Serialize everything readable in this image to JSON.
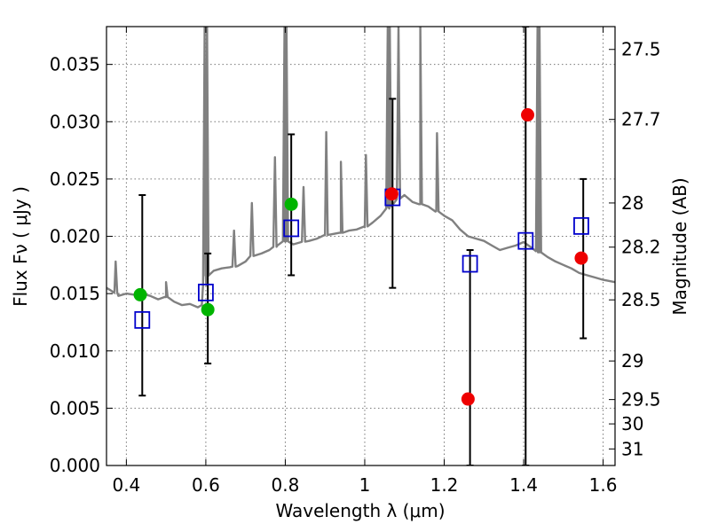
{
  "chart_data": {
    "type": "scatter",
    "xlabel": "Wavelength  λ (μm)",
    "ylabel": "Flux  Fν  ( μJy )",
    "y2label": "Magnitude (AB)",
    "xlim": [
      0.35,
      1.63
    ],
    "ylim": [
      0.0,
      0.0383
    ],
    "x_ticks": [
      0.4,
      0.6,
      0.8,
      1.0,
      1.2,
      1.4,
      1.6
    ],
    "x_tick_labels": [
      "0.4",
      "0.6",
      "0.8",
      "1",
      "1.2",
      "1.4",
      "1.6"
    ],
    "y_ticks": [
      0.0,
      0.005,
      0.01,
      0.015,
      0.02,
      0.025,
      0.03,
      0.035
    ],
    "y_tick_labels": [
      "0.000",
      "0.005",
      "0.010",
      "0.015",
      "0.020",
      "0.025",
      "0.030",
      "0.035"
    ],
    "y2_tick_labels": [
      "27.5",
      "27.7",
      "28",
      "28.2",
      "28.5",
      "29",
      "29.5",
      "30",
      "31"
    ],
    "grid": true,
    "colors": {
      "template": "#808080",
      "model_box": "#0000cc",
      "green_point": "#00b400",
      "red_point": "#ee0000",
      "errorbar": "#000000"
    },
    "template_spectrum": {
      "x": [
        0.35,
        0.36,
        0.37,
        0.38,
        0.4,
        0.42,
        0.44,
        0.46,
        0.48,
        0.5,
        0.52,
        0.54,
        0.56,
        0.58,
        0.59,
        0.6,
        0.62,
        0.64,
        0.66,
        0.68,
        0.7,
        0.72,
        0.74,
        0.76,
        0.78,
        0.8,
        0.82,
        0.84,
        0.86,
        0.88,
        0.9,
        0.92,
        0.94,
        0.96,
        0.98,
        1.0,
        1.02,
        1.04,
        1.06,
        1.08,
        1.1,
        1.12,
        1.14,
        1.16,
        1.18,
        1.2,
        1.22,
        1.24,
        1.26,
        1.28,
        1.3,
        1.32,
        1.34,
        1.36,
        1.38,
        1.4,
        1.42,
        1.44,
        1.46,
        1.48,
        1.5,
        1.52,
        1.54,
        1.56,
        1.58,
        1.6,
        1.63
      ],
      "y": [
        0.0155,
        0.0153,
        0.0152,
        0.0148,
        0.015,
        0.0149,
        0.015,
        0.0148,
        0.0145,
        0.0147,
        0.0143,
        0.014,
        0.0141,
        0.0138,
        0.014,
        0.0165,
        0.017,
        0.0172,
        0.0173,
        0.0174,
        0.0178,
        0.0184,
        0.0185,
        0.0188,
        0.0192,
        0.0196,
        0.0193,
        0.0195,
        0.0196,
        0.0198,
        0.0201,
        0.0202,
        0.0203,
        0.0205,
        0.0206,
        0.0208,
        0.0212,
        0.0218,
        0.0225,
        0.0232,
        0.0236,
        0.023,
        0.0228,
        0.0226,
        0.0222,
        0.0218,
        0.0214,
        0.0206,
        0.02,
        0.0198,
        0.0196,
        0.0192,
        0.0188,
        0.019,
        0.0192,
        0.0195,
        0.019,
        0.0186,
        0.0182,
        0.0178,
        0.0175,
        0.0172,
        0.0168,
        0.0166,
        0.0164,
        0.0162,
        0.016
      ]
    },
    "emission_lines": [
      {
        "x": 0.373,
        "peak": 0.0178
      },
      {
        "x": 0.5,
        "peak": 0.016
      },
      {
        "x": 0.597,
        "peak": 0.0383
      },
      {
        "x": 0.603,
        "peak": 0.0383
      },
      {
        "x": 0.671,
        "peak": 0.0205
      },
      {
        "x": 0.716,
        "peak": 0.0229
      },
      {
        "x": 0.774,
        "peak": 0.0269
      },
      {
        "x": 0.798,
        "peak": 0.0383
      },
      {
        "x": 0.803,
        "peak": 0.0383
      },
      {
        "x": 0.846,
        "peak": 0.0243
      },
      {
        "x": 0.903,
        "peak": 0.0291
      },
      {
        "x": 0.94,
        "peak": 0.0265
      },
      {
        "x": 1.003,
        "peak": 0.0271
      },
      {
        "x": 1.058,
        "peak": 0.0383
      },
      {
        "x": 1.063,
        "peak": 0.0383
      },
      {
        "x": 1.085,
        "peak": 0.0383
      },
      {
        "x": 1.14,
        "peak": 0.0383
      },
      {
        "x": 1.182,
        "peak": 0.029
      },
      {
        "x": 1.435,
        "peak": 0.0383
      },
      {
        "x": 1.44,
        "peak": 0.0383
      }
    ],
    "model_points": {
      "x": [
        0.44,
        0.6,
        0.815,
        1.07,
        1.265,
        1.405,
        1.545
      ],
      "y": [
        0.0127,
        0.0151,
        0.0207,
        0.0234,
        0.0176,
        0.0196,
        0.0209
      ]
    },
    "green_points": {
      "x": [
        0.435,
        0.605,
        0.815
      ],
      "y": [
        0.0149,
        0.0136,
        0.0228
      ]
    },
    "red_points": {
      "x": [
        1.068,
        1.26,
        1.41,
        1.545
      ],
      "y": [
        0.0237,
        0.0058,
        0.0306,
        0.0181
      ]
    },
    "error_bars": [
      {
        "x": 0.44,
        "low": 0.0061,
        "high": 0.0236
      },
      {
        "x": 0.605,
        "low": 0.0089,
        "high": 0.0185
      },
      {
        "x": 0.815,
        "low": 0.0166,
        "high": 0.0289
      },
      {
        "x": 1.07,
        "low": 0.0155,
        "high": 0.032
      },
      {
        "x": 1.265,
        "low": 0.0,
        "high": 0.0188
      },
      {
        "x": 1.405,
        "low": 0.0,
        "high": 0.0383
      },
      {
        "x": 1.55,
        "low": 0.0111,
        "high": 0.025
      }
    ]
  }
}
